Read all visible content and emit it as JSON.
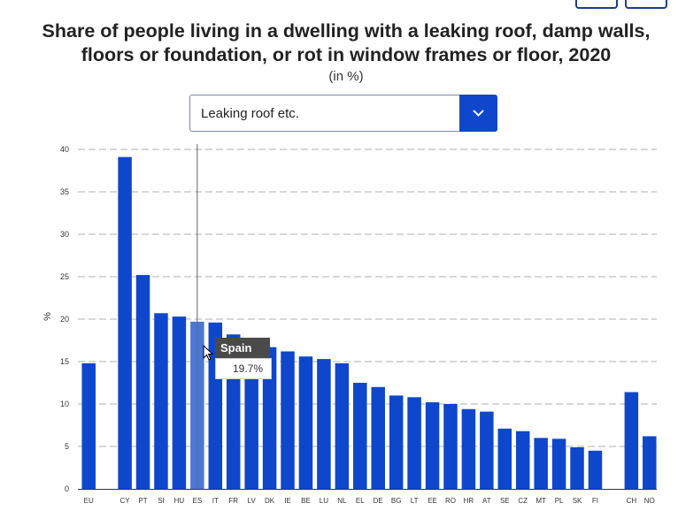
{
  "title_line1": "Share of people living in a dwelling with a leaking roof, damp walls,",
  "title_line2": "floors or foundation, or rot in window frames or floor, 2020",
  "subtitle": "(in %)",
  "dropdown": {
    "selected": "Leaking roof etc.",
    "icon": "chevron-down-icon"
  },
  "tooltip": {
    "country": "Spain",
    "value": "19.7%"
  },
  "colors": {
    "bar": "#0e47cb",
    "highlight": "#4a78d8",
    "accent": "#0e47cb"
  },
  "chart_data": {
    "type": "bar",
    "title": "Share of people living in a dwelling with a leaking roof, damp walls, floors or foundation, or rot in window frames or floor, 2020",
    "subtitle": "(in %)",
    "ylabel": "%",
    "xlabel": "",
    "ylim": [
      0,
      40
    ],
    "yticks": [
      0,
      5,
      10,
      15,
      20,
      25,
      30,
      35,
      40
    ],
    "grid": true,
    "highlighted": "ES",
    "categories": [
      "EU",
      "",
      "CY",
      "PT",
      "SI",
      "HU",
      "ES",
      "IT",
      "FR",
      "LV",
      "DK",
      "IE",
      "BE",
      "LU",
      "NL",
      "EL",
      "DE",
      "BG",
      "LT",
      "EE",
      "RO",
      "HR",
      "AT",
      "SE",
      "CZ",
      "MT",
      "PL",
      "SK",
      "FI",
      "",
      "CH",
      "NO"
    ],
    "values": [
      14.8,
      null,
      39.1,
      25.2,
      20.7,
      20.3,
      19.7,
      19.6,
      18.2,
      17.6,
      16.7,
      16.2,
      15.6,
      15.3,
      14.8,
      12.5,
      12.0,
      11.0,
      10.8,
      10.2,
      10.0,
      9.4,
      9.1,
      7.1,
      6.8,
      6.0,
      5.9,
      4.9,
      4.5,
      null,
      11.4,
      6.2
    ]
  }
}
